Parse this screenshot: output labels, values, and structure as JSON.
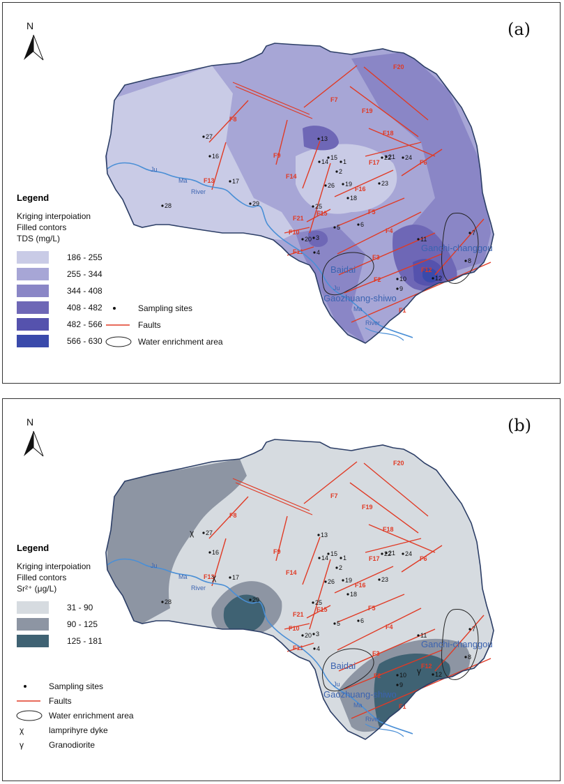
{
  "colors": {
    "fault": "#e03a25",
    "river": "#4a8fd6",
    "boundary": "#2c3e66",
    "tds_classes": [
      "#c9cbe6",
      "#a7a6d6",
      "#8a86c6",
      "#6e67b6",
      "#5552ad",
      "#3a4aab"
    ],
    "sr_classes": [
      "#d6dbe0",
      "#8d95a3",
      "#3f6273"
    ]
  },
  "panels": [
    {
      "id": "a",
      "panel_label": "(a)",
      "north_label": "N",
      "legend": {
        "title": "Legend",
        "method": "Kriging interpoiation",
        "filled": "Filled contors",
        "variable": "TDS (mg/L)",
        "classes": [
          {
            "label": "186 - 255",
            "color": "#c9cbe6"
          },
          {
            "label": "255 - 344",
            "color": "#a7a6d6"
          },
          {
            "label": "344 - 408",
            "color": "#8a86c6"
          },
          {
            "label": "408 - 482",
            "color": "#6e67b6"
          },
          {
            "label": "482 - 566",
            "color": "#5552ad"
          },
          {
            "label": "566 - 630",
            "color": "#3a4aab"
          }
        ],
        "symbols": [
          {
            "kind": "dot",
            "label": "Sampling sites"
          },
          {
            "kind": "line",
            "label": "Faults"
          },
          {
            "kind": "ellipse",
            "label": "Water enrichment area"
          }
        ]
      }
    },
    {
      "id": "b",
      "panel_label": "(b)",
      "north_label": "N",
      "legend": {
        "title": "Legend",
        "method": "Kriging interpoiation",
        "filled": "Filled contors",
        "variable": "Sr²⁺ (μg/L)",
        "classes": [
          {
            "label": "31  -  90",
            "color": "#d6dbe0"
          },
          {
            "label": "90  - 125",
            "color": "#8d95a3"
          },
          {
            "label": "125 - 181",
            "color": "#3f6273"
          }
        ],
        "symbols": [
          {
            "kind": "dot",
            "label": "Sampling sites"
          },
          {
            "kind": "line",
            "label": "Faults"
          },
          {
            "kind": "ellipse",
            "label": "Water enrichment area"
          },
          {
            "kind": "chi",
            "glyph": "χ",
            "label": "lamprihyre dyke"
          },
          {
            "kind": "gamma",
            "glyph": "γ",
            "label": "Granodiorite"
          }
        ]
      }
    }
  ],
  "sampling_sites": [
    "1",
    "2",
    "3",
    "4",
    "5",
    "6",
    "7",
    "8",
    "9",
    "10",
    "11",
    "12",
    "13",
    "14",
    "15",
    "16",
    "17",
    "18",
    "19",
    "20",
    "21",
    "22",
    "23",
    "24",
    "25",
    "26",
    "27",
    "28",
    "29"
  ],
  "faults": [
    "F1",
    "F2",
    "F3",
    "F4",
    "F5",
    "F6",
    "F7",
    "F8",
    "F9",
    "F10",
    "F11",
    "F12",
    "F13",
    "F14",
    "F15",
    "F16",
    "F17",
    "F18",
    "F19",
    "F20",
    "F21"
  ],
  "areas": [
    "Baidai",
    "Gaozhuang-shiwo",
    "Ganchi-changgou"
  ],
  "rivers": {
    "ju": "Ju",
    "ma": "Ma",
    "river": "River"
  }
}
